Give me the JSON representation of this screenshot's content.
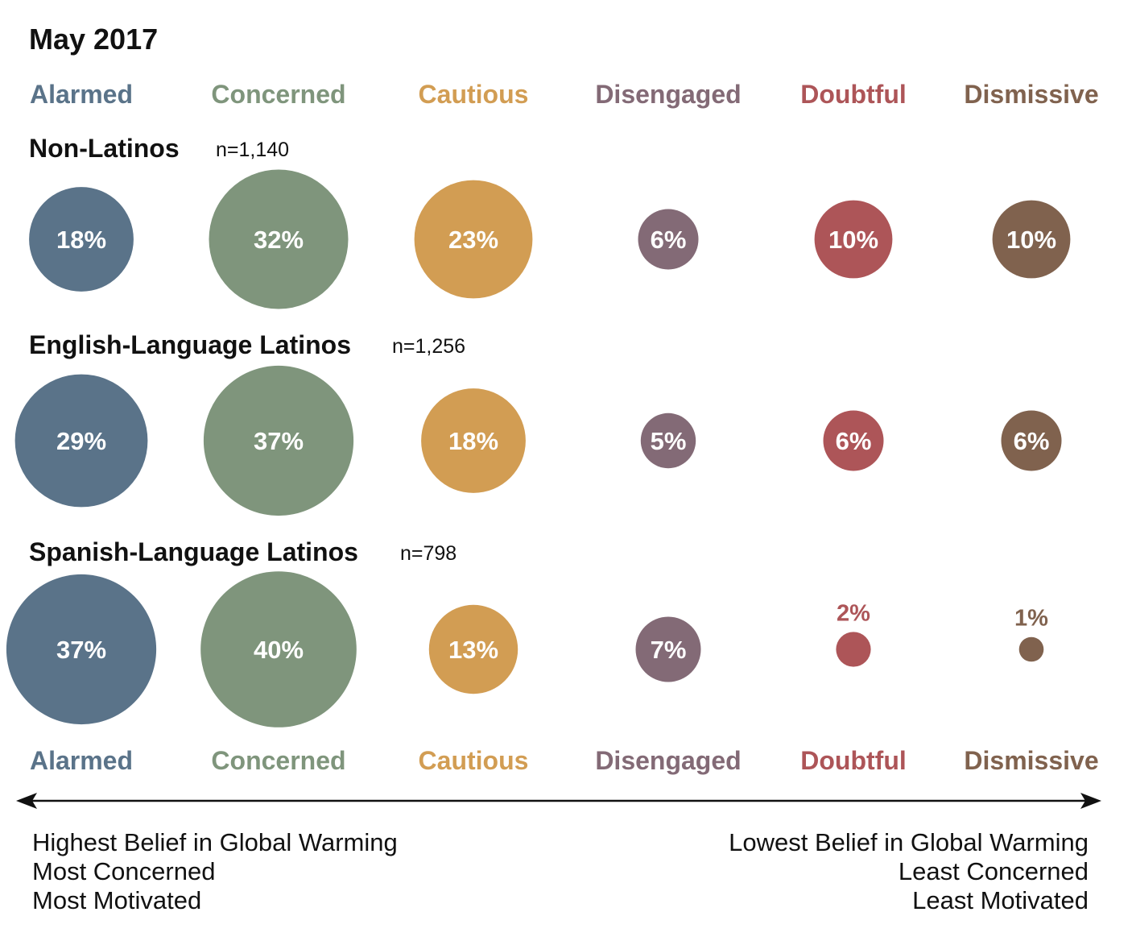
{
  "title": "May 2017",
  "colors": {
    "Alarmed": "#5a7389",
    "Concerned": "#7f957c",
    "Cautious": "#d29d53",
    "Disengaged": "#836a76",
    "Doubtful": "#ad5558",
    "Dismissive": "#80624e"
  },
  "chart_data": {
    "type": "bubble",
    "title": "May 2017",
    "categories": [
      "Alarmed",
      "Concerned",
      "Cautious",
      "Disengaged",
      "Doubtful",
      "Dismissive"
    ],
    "series": [
      {
        "name": "Non-Latinos",
        "n_label": "n=1,140",
        "values": [
          18,
          32,
          23,
          6,
          10,
          10
        ]
      },
      {
        "name": "English-Language Latinos",
        "n_label": "n=1,256",
        "values": [
          29,
          37,
          18,
          5,
          6,
          6
        ]
      },
      {
        "name": "Spanish-Language Latinos",
        "n_label": "n=798",
        "values": [
          37,
          40,
          13,
          7,
          2,
          1
        ]
      }
    ],
    "axis": {
      "left": [
        "Highest Belief in Global Warming",
        "Most Concerned",
        "Most Motivated"
      ],
      "right": [
        "Lowest Belief in Global Warming",
        "Least Concerned",
        "Least Motivated"
      ]
    }
  }
}
